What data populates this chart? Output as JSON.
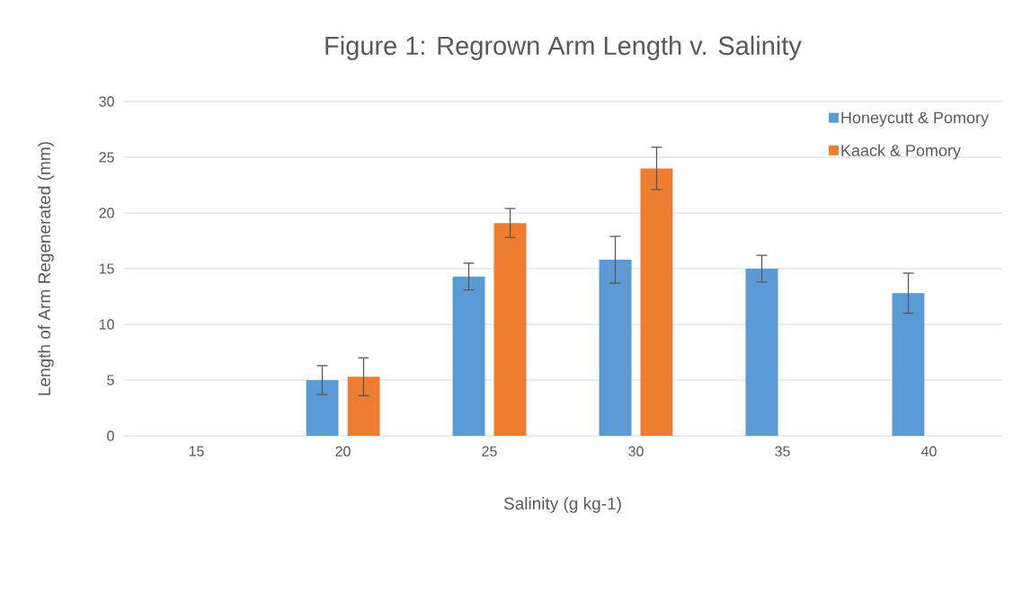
{
  "chart_data": {
    "type": "bar",
    "title": "Figure 1: Regrown Arm Length v. Salinity",
    "xlabel": "Salinity (g kg-1)",
    "ylabel": "Length of Arm Regenerated (mm)",
    "categories": [
      "15",
      "20",
      "25",
      "30",
      "35",
      "40"
    ],
    "series": [
      {
        "name": "Honeycutt & Pomory",
        "color": "#5b9bd5",
        "values": [
          null,
          5.0,
          14.3,
          15.8,
          15.0,
          12.8
        ],
        "errors": [
          null,
          1.3,
          1.2,
          2.1,
          1.2,
          1.8
        ]
      },
      {
        "name": "Kaack & Pomory",
        "color": "#ed7d31",
        "values": [
          null,
          5.3,
          19.1,
          24.0,
          null,
          null
        ],
        "errors": [
          null,
          1.7,
          1.3,
          1.9,
          null,
          null
        ]
      }
    ],
    "ylim": [
      0,
      30
    ],
    "yticks": [
      0,
      5,
      10,
      15,
      20,
      25,
      30
    ],
    "grid": "y",
    "legend": "top right"
  }
}
